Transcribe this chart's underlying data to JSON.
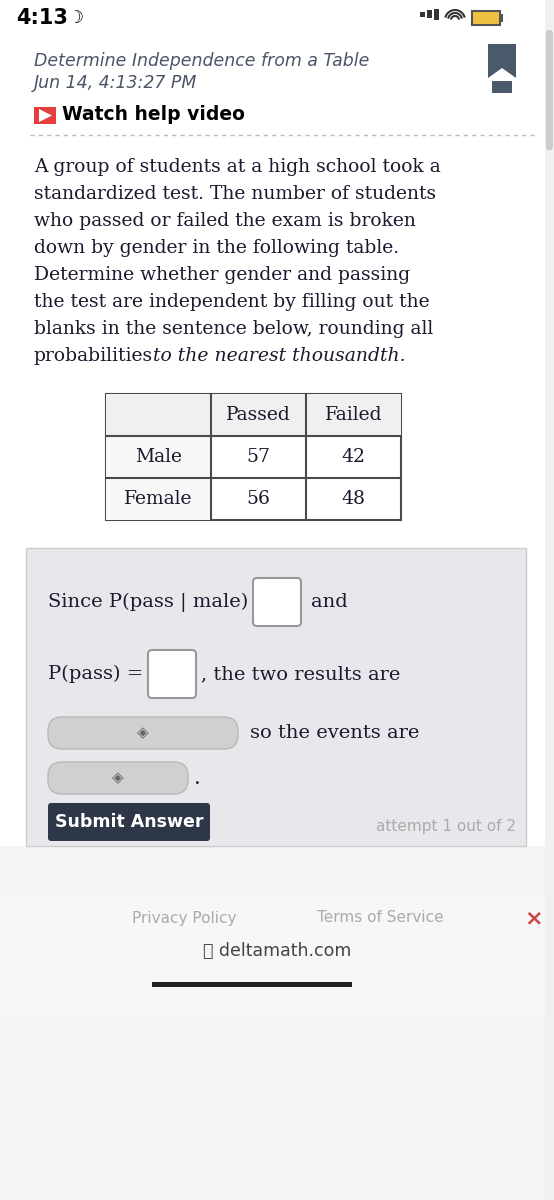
{
  "bg_color": "#ffffff",
  "status_bar_time": "4:13",
  "moon_symbol": "☽",
  "header_title": "Determine Independence from a Table",
  "header_date": "Jun 14, 4:13:27 PM",
  "watch_text": "Watch help video",
  "para_lines": [
    "A group of students at a high school took a",
    "standardized test. The number of students",
    "who passed or failed the exam is broken",
    "down by gender in the following table.",
    "Determine whether gender and passing",
    "the test are independent by filling out the",
    "blanks in the sentence below, rounding all",
    "probabilities"
  ],
  "italic_end": "to the nearest thousandth.",
  "table_headers": [
    "",
    "Passed",
    "Failed"
  ],
  "table_rows": [
    [
      "Male",
      "57",
      "42"
    ],
    [
      "Female",
      "56",
      "48"
    ]
  ],
  "sentence_line1_prefix": "Since P(pass | male) =",
  "sentence_line1_suffix": "and",
  "sentence_line2_prefix": "P(pass) =",
  "sentence_line2_suffix": ", the two results are",
  "dropdown1_suffix": "so the events are",
  "dropdown2_suffix": ".",
  "submit_text": "Submit Answer",
  "attempt_text": "attempt 1 out of 2",
  "footer_privacy": "Privacy Policy",
  "footer_terms": "Terms of Service",
  "footer_domain": "deltamath.com",
  "text_dark": "#1a1a2e",
  "text_gray": "#888888",
  "header_text_color": "#4a5568",
  "table_border": "#4a4a4a",
  "table_header_bg": "#f0f0f0",
  "table_row_bg": "#ffffff",
  "table_label_bg": "#f8f8f8",
  "answer_box_bg": "#e8e8ec",
  "answer_box_border": "#cccccc",
  "input_box_bg": "#ffffff",
  "input_box_border": "#999999",
  "dropdown_bg": "#d8d8d8",
  "dropdown_border": "#bbbbbb",
  "submit_bg": "#2d3748",
  "submit_fg": "#ffffff",
  "youtube_red": "#e53e3e",
  "footer_bg": "#f7f7f7",
  "scrollbar_color": "#cccccc",
  "bottom_bar": "#222222",
  "close_x_color": "#cc4444"
}
